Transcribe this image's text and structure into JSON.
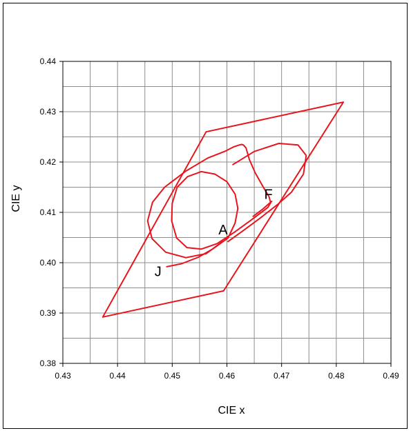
{
  "chart_data": {
    "type": "line",
    "title": "",
    "xlabel": "CIE x",
    "ylabel": "CIE y",
    "xlim": [
      0.43,
      0.49
    ],
    "ylim": [
      0.38,
      0.44
    ],
    "x_ticks": [
      "0.43",
      "0.44",
      "0.45",
      "0.46",
      "0.47",
      "0.48",
      "0.49"
    ],
    "y_ticks": [
      "0.38",
      "0.39",
      "0.40",
      "0.41",
      "0.42",
      "0.43",
      "0.44"
    ],
    "grid": true,
    "line_color": "#e8141c",
    "series": [
      {
        "x": [
          0.4373,
          0.4562,
          0.4813,
          0.4594,
          0.4373
        ],
        "y": [
          0.3892,
          0.426,
          0.4319,
          0.3944,
          0.3892
        ]
      },
      {
        "x": [
          0.449,
          0.4517,
          0.4548,
          0.4575,
          0.4602,
          0.4615,
          0.462,
          0.4615,
          0.46,
          0.4578,
          0.4553,
          0.4528,
          0.4509,
          0.45,
          0.4499,
          0.4508,
          0.4527,
          0.4553,
          0.4582,
          0.4613,
          0.4641,
          0.4662,
          0.4675,
          0.468,
          0.4677,
          0.4666,
          0.4652,
          0.4641,
          0.4635,
          0.463,
          0.4627,
          0.4623,
          0.4612,
          0.4598,
          0.4565,
          0.4525,
          0.4486,
          0.4464,
          0.4455,
          0.4463,
          0.4488,
          0.4525,
          0.4562,
          0.4592
        ],
        "y": [
          0.3992,
          0.3998,
          0.4011,
          0.4028,
          0.4049,
          0.4079,
          0.4108,
          0.4136,
          0.4161,
          0.4176,
          0.4181,
          0.4171,
          0.415,
          0.4118,
          0.4083,
          0.4049,
          0.403,
          0.4027,
          0.4038,
          0.406,
          0.4082,
          0.4099,
          0.411,
          0.4119,
          0.4131,
          0.4151,
          0.4178,
          0.4205,
          0.4228,
          0.4234,
          0.4235,
          0.4234,
          0.423,
          0.4222,
          0.4208,
          0.4182,
          0.415,
          0.412,
          0.4083,
          0.4048,
          0.4021,
          0.401,
          0.4018,
          0.4042
        ]
      },
      {
        "x": [
          0.4682,
          0.4665,
          0.4648
        ],
        "y": [
          0.4122,
          0.4106,
          0.4092
        ]
      },
      {
        "x": [
          0.4611,
          0.465,
          0.4695,
          0.473,
          0.4745,
          0.474,
          0.4718,
          0.4692,
          0.466,
          0.463,
          0.4602
        ],
        "y": [
          0.4195,
          0.4221,
          0.4237,
          0.4234,
          0.4213,
          0.4176,
          0.414,
          0.4115,
          0.4088,
          0.4064,
          0.4042
        ]
      }
    ],
    "annotations": [
      {
        "text": "A",
        "x": 0.4593,
        "y": 0.4056
      },
      {
        "text": "F",
        "x": 0.4676,
        "y": 0.4127
      },
      {
        "text": "J",
        "x": 0.4474,
        "y": 0.3973
      }
    ]
  }
}
